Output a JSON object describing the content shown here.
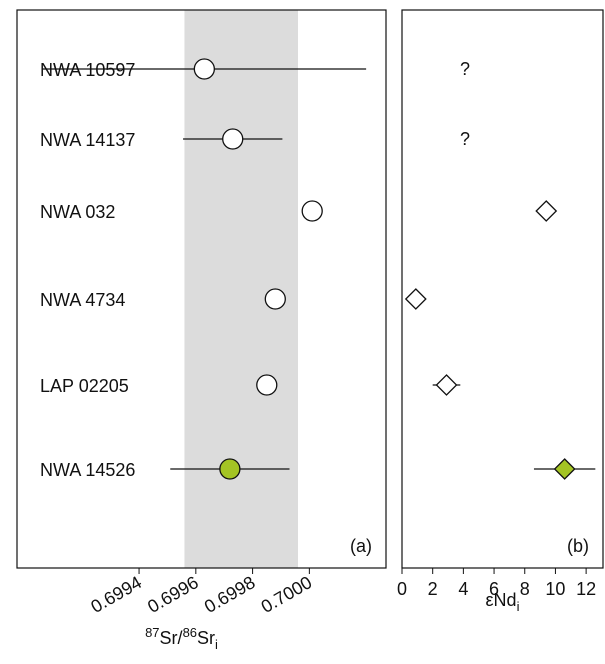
{
  "chart_data": [
    {
      "type": "dot",
      "panel_label": "(a)",
      "categories": [
        "NWA 10597",
        "NWA 14137",
        "NWA 032",
        "NWA 4734",
        "LAP 02205",
        "NWA 14526"
      ],
      "values": [
        0.69963,
        0.69973,
        0.70001,
        0.69988,
        0.69985,
        0.69972
      ],
      "errors": [
        0.00057,
        0.000175,
        null,
        null,
        null,
        0.00021
      ],
      "colors": [
        "#ffffff",
        "#ffffff",
        "#ffffff",
        "#ffffff",
        "#ffffff",
        "#a4c424"
      ],
      "band": [
        0.69956,
        0.69996
      ],
      "band_color": "#dcdcdc",
      "xlim": [
        0.69897,
        0.70027
      ],
      "xticks": [
        0.6994,
        0.6996,
        0.6998,
        {
          "value": 0.7,
          "label": "0.7000"
        }
      ],
      "xlabel": [
        {
          "sup": "87"
        },
        {
          "text": "Sr/"
        },
        {
          "sup": "86"
        },
        {
          "text": "Sr"
        },
        {
          "sub": "i"
        }
      ]
    },
    {
      "type": "diamond",
      "panel_label": "(b)",
      "values": [
        null,
        null,
        9.4,
        0.9,
        2.9,
        10.6
      ],
      "value_labels": [
        "?",
        "?",
        null,
        null,
        null,
        null
      ],
      "errors": [
        null,
        null,
        null,
        null,
        0.9,
        2.0
      ],
      "colors": [
        "#ffffff",
        "#ffffff",
        "#ffffff",
        "#ffffff",
        "#ffffff",
        "#a4c424"
      ],
      "xlim": [
        0,
        13.1
      ],
      "xticks": [
        0,
        2,
        4,
        6,
        8,
        10,
        12
      ],
      "xlabel": [
        {
          "text": "εNd"
        },
        {
          "sub": "i"
        }
      ]
    }
  ]
}
